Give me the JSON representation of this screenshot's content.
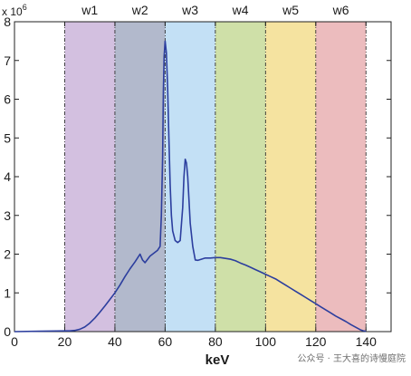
{
  "chart_data": {
    "type": "line",
    "xlabel": "keV",
    "ylabel": "",
    "y_exponent_text": "x 10",
    "y_exponent_power": "6",
    "xlim": [
      0,
      150
    ],
    "ylim": [
      0,
      8
    ],
    "x_ticks": [
      "0",
      "20",
      "40",
      "60",
      "80",
      "100",
      "120",
      "140"
    ],
    "y_ticks": [
      "0",
      "1",
      "2",
      "3",
      "4",
      "5",
      "6",
      "7",
      "8"
    ],
    "energy_windows": [
      {
        "label": "w1",
        "start": 20,
        "end": 40,
        "color": "#d3c0e0"
      },
      {
        "label": "w2",
        "start": 40,
        "end": 60,
        "color": "#b2b9cc"
      },
      {
        "label": "w3",
        "start": 60,
        "end": 80,
        "color": "#c3e0f5"
      },
      {
        "label": "w4",
        "start": 80,
        "end": 100,
        "color": "#cfe0a8"
      },
      {
        "label": "w5",
        "start": 100,
        "end": 120,
        "color": "#f5e3a0"
      },
      {
        "label": "w6",
        "start": 120,
        "end": 140,
        "color": "#ecbcbe"
      }
    ],
    "series": [
      {
        "color": "#2c3e9e",
        "x": [
          0,
          10,
          20,
          22,
          24,
          26,
          28,
          30,
          32,
          34,
          36,
          38,
          40,
          42,
          44,
          46,
          48,
          49,
          50,
          51,
          52,
          54,
          56,
          57,
          58,
          58.5,
          59,
          59.3,
          59.6,
          60,
          60.5,
          61,
          61.5,
          62,
          62.5,
          63,
          64,
          65,
          66,
          67,
          67.5,
          68,
          68.5,
          69,
          69.5,
          70,
          71,
          72,
          73,
          74,
          75,
          76,
          78,
          80,
          82,
          84,
          86,
          88,
          90,
          92,
          94,
          96,
          98,
          100,
          102,
          104,
          106,
          108,
          110,
          112,
          114,
          116,
          118,
          120,
          122,
          124,
          126,
          128,
          130,
          132,
          134,
          136,
          138,
          139,
          140
        ],
        "y": [
          0,
          0.01,
          0.02,
          0.02,
          0.03,
          0.06,
          0.12,
          0.22,
          0.35,
          0.5,
          0.66,
          0.83,
          1.0,
          1.2,
          1.42,
          1.62,
          1.8,
          1.9,
          2.0,
          1.85,
          1.78,
          1.95,
          2.05,
          2.1,
          2.2,
          3.0,
          4.5,
          6.2,
          7.1,
          7.5,
          7.2,
          6.3,
          5.0,
          3.8,
          3.0,
          2.6,
          2.35,
          2.3,
          2.35,
          3.2,
          4.0,
          4.45,
          4.35,
          4.0,
          3.4,
          2.8,
          2.2,
          1.85,
          1.84,
          1.86,
          1.88,
          1.9,
          1.9,
          1.91,
          1.91,
          1.89,
          1.87,
          1.83,
          1.77,
          1.72,
          1.66,
          1.6,
          1.54,
          1.48,
          1.42,
          1.36,
          1.28,
          1.2,
          1.12,
          1.04,
          0.96,
          0.88,
          0.8,
          0.72,
          0.64,
          0.56,
          0.48,
          0.4,
          0.33,
          0.26,
          0.18,
          0.11,
          0.04,
          0.02,
          0.01
        ]
      }
    ]
  },
  "watermark": {
    "text": "公众号 · 王大喜的诗慢庭院"
  }
}
